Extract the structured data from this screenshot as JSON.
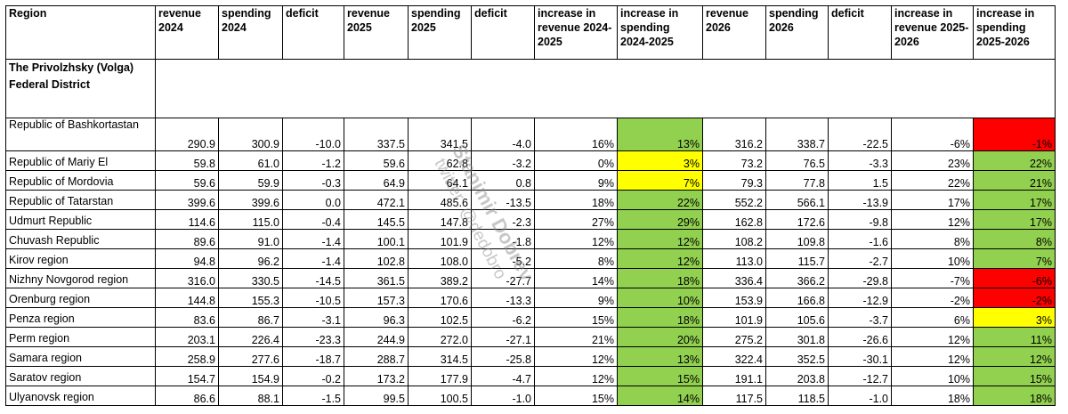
{
  "headers": [
    "Region",
    "revenue 2024",
    "spending 2024",
    "deficit",
    "revenue 2025",
    "spending 2025",
    "deficit",
    "increase in revenue 2024-2025",
    "increase in spending 2024-2025",
    "revenue 2026",
    "spending 2026",
    "deficit",
    "increase in revenue 2025-2026",
    "increase in spending 2025-2026"
  ],
  "district": "The Privolzhsky (Volga) Federal District",
  "colors": {
    "green": "#92d050",
    "yellow": "#ffff00",
    "red": "#ff0000"
  },
  "rows": [
    {
      "region": "Republic of Bashkortastan",
      "values": [
        "290.9",
        "300.9",
        "-10.0",
        "337.5",
        "341.5",
        "-4.0",
        "16%",
        "13%",
        "316.2",
        "338.7",
        "-22.5",
        "-6%",
        "-1%"
      ],
      "spend_2425_color": "green",
      "spend_2526_color": "red"
    },
    {
      "region": "Republic of Mariy El",
      "values": [
        "59.8",
        "61.0",
        "-1.2",
        "59.6",
        "62.8",
        "-3.2",
        "0%",
        "3%",
        "73.2",
        "76.5",
        "-3.3",
        "23%",
        "22%"
      ],
      "spend_2425_color": "yellow",
      "spend_2526_color": "green"
    },
    {
      "region": "Republic of Mordovia",
      "values": [
        "59.6",
        "59.9",
        "-0.3",
        "64.9",
        "64.1",
        "0.8",
        "9%",
        "7%",
        "79.3",
        "77.8",
        "1.5",
        "22%",
        "21%"
      ],
      "spend_2425_color": "yellow",
      "spend_2526_color": "green"
    },
    {
      "region": "Republic of Tatarstan",
      "values": [
        "399.6",
        "399.6",
        "0.0",
        "472.1",
        "485.6",
        "-13.5",
        "18%",
        "22%",
        "552.2",
        "566.1",
        "-13.9",
        "17%",
        "17%"
      ],
      "spend_2425_color": "green",
      "spend_2526_color": "green"
    },
    {
      "region": "Udmurt Republic",
      "values": [
        "114.6",
        "115.0",
        "-0.4",
        "145.5",
        "147.8",
        "-2.3",
        "27%",
        "29%",
        "162.8",
        "172.6",
        "-9.8",
        "12%",
        "17%"
      ],
      "spend_2425_color": "green",
      "spend_2526_color": "green"
    },
    {
      "region": "Chuvash Republic",
      "values": [
        "89.6",
        "91.0",
        "-1.4",
        "100.1",
        "101.9",
        "-1.8",
        "12%",
        "12%",
        "108.2",
        "109.8",
        "-1.6",
        "8%",
        "8%"
      ],
      "spend_2425_color": "green",
      "spend_2526_color": "green"
    },
    {
      "region": "Kirov region",
      "values": [
        "94.8",
        "96.2",
        "-1.4",
        "102.8",
        "108.0",
        "-5.2",
        "8%",
        "12%",
        "113.0",
        "115.7",
        "-2.7",
        "10%",
        "7%"
      ],
      "spend_2425_color": "green",
      "spend_2526_color": "green"
    },
    {
      "region": "Nizhny Novgorod region",
      "values": [
        "316.0",
        "330.5",
        "-14.5",
        "361.5",
        "389.2",
        "-27.7",
        "14%",
        "18%",
        "336.4",
        "366.2",
        "-29.8",
        "-7%",
        "-6%"
      ],
      "spend_2425_color": "green",
      "spend_2526_color": "red"
    },
    {
      "region": "Orenburg region",
      "values": [
        "144.8",
        "155.3",
        "-10.5",
        "157.3",
        "170.6",
        "-13.3",
        "9%",
        "10%",
        "153.9",
        "166.8",
        "-12.9",
        "-2%",
        "-2%"
      ],
      "spend_2425_color": "green",
      "spend_2526_color": "red"
    },
    {
      "region": "Penza region",
      "values": [
        "83.6",
        "86.7",
        "-3.1",
        "96.3",
        "102.5",
        "-6.2",
        "15%",
        "18%",
        "101.9",
        "105.6",
        "-3.7",
        "6%",
        "3%"
      ],
      "spend_2425_color": "green",
      "spend_2526_color": "yellow"
    },
    {
      "region": "Perm region",
      "values": [
        "203.1",
        "226.4",
        "-23.3",
        "244.9",
        "272.0",
        "-27.1",
        "21%",
        "20%",
        "275.2",
        "301.8",
        "-26.6",
        "12%",
        "11%"
      ],
      "spend_2425_color": "green",
      "spend_2526_color": "green"
    },
    {
      "region": "Samara region",
      "values": [
        "258.9",
        "277.6",
        "-18.7",
        "288.7",
        "314.5",
        "-25.8",
        "12%",
        "13%",
        "322.4",
        "352.5",
        "-30.1",
        "12%",
        "12%"
      ],
      "spend_2425_color": "green",
      "spend_2526_color": "green"
    },
    {
      "region": "Saratov region",
      "values": [
        "154.7",
        "154.9",
        "-0.2",
        "173.2",
        "177.9",
        "-4.7",
        "12%",
        "15%",
        "191.1",
        "203.8",
        "-12.7",
        "10%",
        "15%"
      ],
      "spend_2425_color": "green",
      "spend_2526_color": "green"
    },
    {
      "region": "Ulyanovsk region",
      "values": [
        "86.6",
        "88.1",
        "-1.5",
        "99.5",
        "100.5",
        "-1.0",
        "15%",
        "14%",
        "117.5",
        "118.5",
        "-1.0",
        "18%",
        "18%"
      ],
      "spend_2425_color": "green",
      "spend_2526_color": "green"
    }
  ],
  "watermark": {
    "line1": "Stanimir Dobrev",
    "line2": "twitter: @dedobro"
  }
}
